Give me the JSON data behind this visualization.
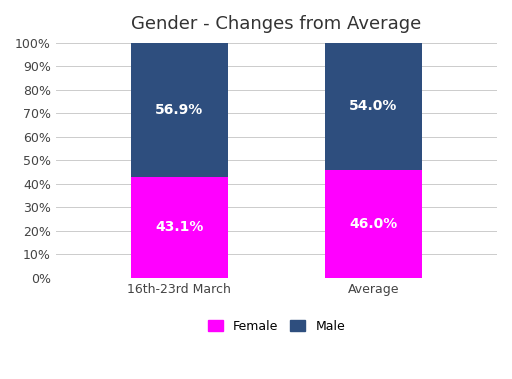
{
  "title": "Gender - Changes from Average",
  "categories": [
    "16th-23rd March",
    "Average"
  ],
  "female_values": [
    43.1,
    46.0
  ],
  "male_values": [
    56.9,
    54.0
  ],
  "female_color": "#FF00FF",
  "male_color": "#2E4E7E",
  "background_color": "#FFFFFF",
  "bar_width": 0.22,
  "ylim": [
    0,
    100
  ],
  "yticks": [
    0,
    10,
    20,
    30,
    40,
    50,
    60,
    70,
    80,
    90,
    100
  ],
  "ytick_labels": [
    "0%",
    "10%",
    "20%",
    "30%",
    "40%",
    "50%",
    "60%",
    "70%",
    "80%",
    "90%",
    "100%"
  ],
  "label_fontsize": 10,
  "title_fontsize": 13,
  "tick_fontsize": 9,
  "legend_fontsize": 9,
  "text_color": "#FFFFFF",
  "female_label": "Female",
  "male_label": "Male",
  "x_positions": [
    0.28,
    0.72
  ]
}
